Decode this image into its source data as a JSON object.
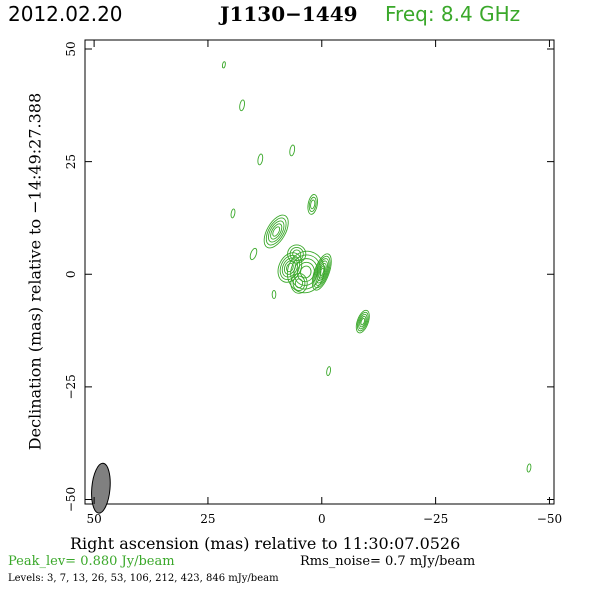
{
  "header": {
    "date": "2012.02.20",
    "source": "J1130−1449",
    "frequency": "Freq:  8.4  GHz"
  },
  "footer": {
    "xlabel": "Right ascension (mas) relative to 11:30:07.0526",
    "ylabel": "Declination (mas) relative to −14:49:27.388",
    "peak": "Peak_lev=  0.880 Jy/beam",
    "rms": "Rms_noise=   0.7  mJy/beam",
    "levels": "Levels:   3,    7,   13,   26,   53,  106,  212,  423,  846 mJy/beam"
  },
  "colors": {
    "contour": "#3aa82a",
    "beam": "#808080",
    "frame": "#000000"
  },
  "chart_data": {
    "type": "contour",
    "xlim": [
      52,
      -51
    ],
    "ylim": [
      -51,
      52
    ],
    "x_ticks": [
      50,
      25,
      0,
      -25,
      -50
    ],
    "y_ticks": [
      -50,
      -25,
      0,
      25,
      50
    ],
    "x_tick_labels": [
      "50",
      "25",
      "0",
      "−25",
      "−50"
    ],
    "y_tick_labels": [
      "−50",
      "−25",
      "0",
      "25",
      "50"
    ],
    "contour_levels_mJy": [
      3,
      7,
      13,
      26,
      53,
      106,
      212,
      423,
      846
    ],
    "peak_Jy_per_beam": 0.88,
    "rms_noise_mJy_per_beam": 0.7,
    "beam": {
      "ra": 48.5,
      "dec": -47.5,
      "major_mas": 5.5,
      "minor_mas": 2.0,
      "pa_deg": 5
    },
    "components": [
      {
        "ra": 0.0,
        "dec": 0.5,
        "rx": 1.6,
        "ry": 4.2,
        "angle": 20,
        "levels": 7
      },
      {
        "ra": 3.5,
        "dec": 0.5,
        "rx": 4.0,
        "ry": 4.6,
        "angle": 15,
        "levels": 5
      },
      {
        "ra": 7.0,
        "dec": 1.5,
        "rx": 2.4,
        "ry": 3.4,
        "angle": 25,
        "levels": 5
      },
      {
        "ra": 5.0,
        "dec": -2.0,
        "rx": 1.8,
        "ry": 2.2,
        "angle": 0,
        "levels": 3
      },
      {
        "ra": 5.5,
        "dec": 4.5,
        "rx": 2.0,
        "ry": 2.0,
        "angle": 0,
        "levels": 3
      },
      {
        "ra": 10.0,
        "dec": 9.5,
        "rx": 2.0,
        "ry": 4.0,
        "angle": 30,
        "levels": 5
      },
      {
        "ra": 2.0,
        "dec": 15.5,
        "rx": 1.0,
        "ry": 2.2,
        "angle": 10,
        "levels": 3
      },
      {
        "ra": 6.5,
        "dec": 27.5,
        "rx": 0.5,
        "ry": 1.2,
        "angle": 10,
        "levels": 1
      },
      {
        "ra": 13.5,
        "dec": 25.5,
        "rx": 0.5,
        "ry": 1.2,
        "angle": 10,
        "levels": 1
      },
      {
        "ra": 17.5,
        "dec": 37.5,
        "rx": 0.5,
        "ry": 1.2,
        "angle": 10,
        "levels": 1
      },
      {
        "ra": 21.5,
        "dec": 46.5,
        "rx": 0.3,
        "ry": 0.7,
        "angle": 10,
        "levels": 1
      },
      {
        "ra": 19.5,
        "dec": 13.5,
        "rx": 0.4,
        "ry": 1.0,
        "angle": 10,
        "levels": 1
      },
      {
        "ra": 15.0,
        "dec": 4.5,
        "rx": 0.6,
        "ry": 1.3,
        "angle": 20,
        "levels": 1
      },
      {
        "ra": 10.5,
        "dec": -4.5,
        "rx": 0.4,
        "ry": 0.9,
        "angle": 0,
        "levels": 1
      },
      {
        "ra": -9.0,
        "dec": -10.5,
        "rx": 1.2,
        "ry": 2.6,
        "angle": 20,
        "levels": 5
      },
      {
        "ra": -1.5,
        "dec": -21.5,
        "rx": 0.4,
        "ry": 1.0,
        "angle": 10,
        "levels": 1
      },
      {
        "ra": -45.5,
        "dec": -43.0,
        "rx": 0.4,
        "ry": 0.9,
        "angle": 10,
        "levels": 1
      }
    ]
  }
}
